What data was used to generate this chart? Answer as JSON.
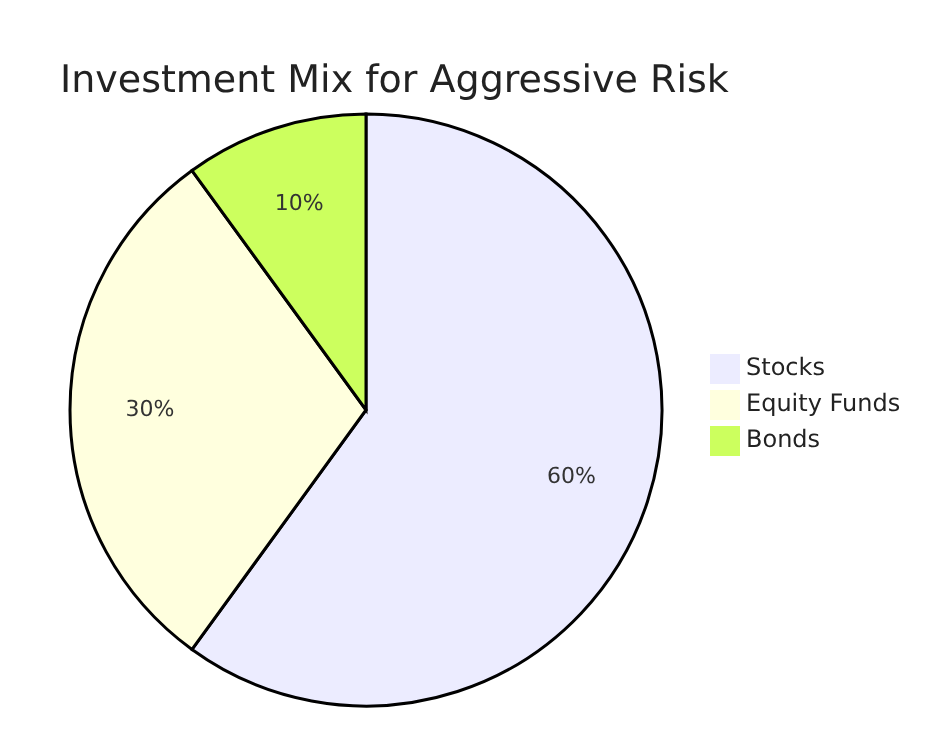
{
  "chart_data": {
    "type": "pie",
    "title": "Investment Mix for Aggressive Risk",
    "categories": [
      "Stocks",
      "Equity Funds",
      "Bonds"
    ],
    "values": [
      60,
      30,
      10
    ],
    "colors": [
      "#ececff",
      "#ffffde",
      "#ccff5e"
    ],
    "value_labels": [
      "60%",
      "30%",
      "10%"
    ],
    "legend": "right"
  }
}
